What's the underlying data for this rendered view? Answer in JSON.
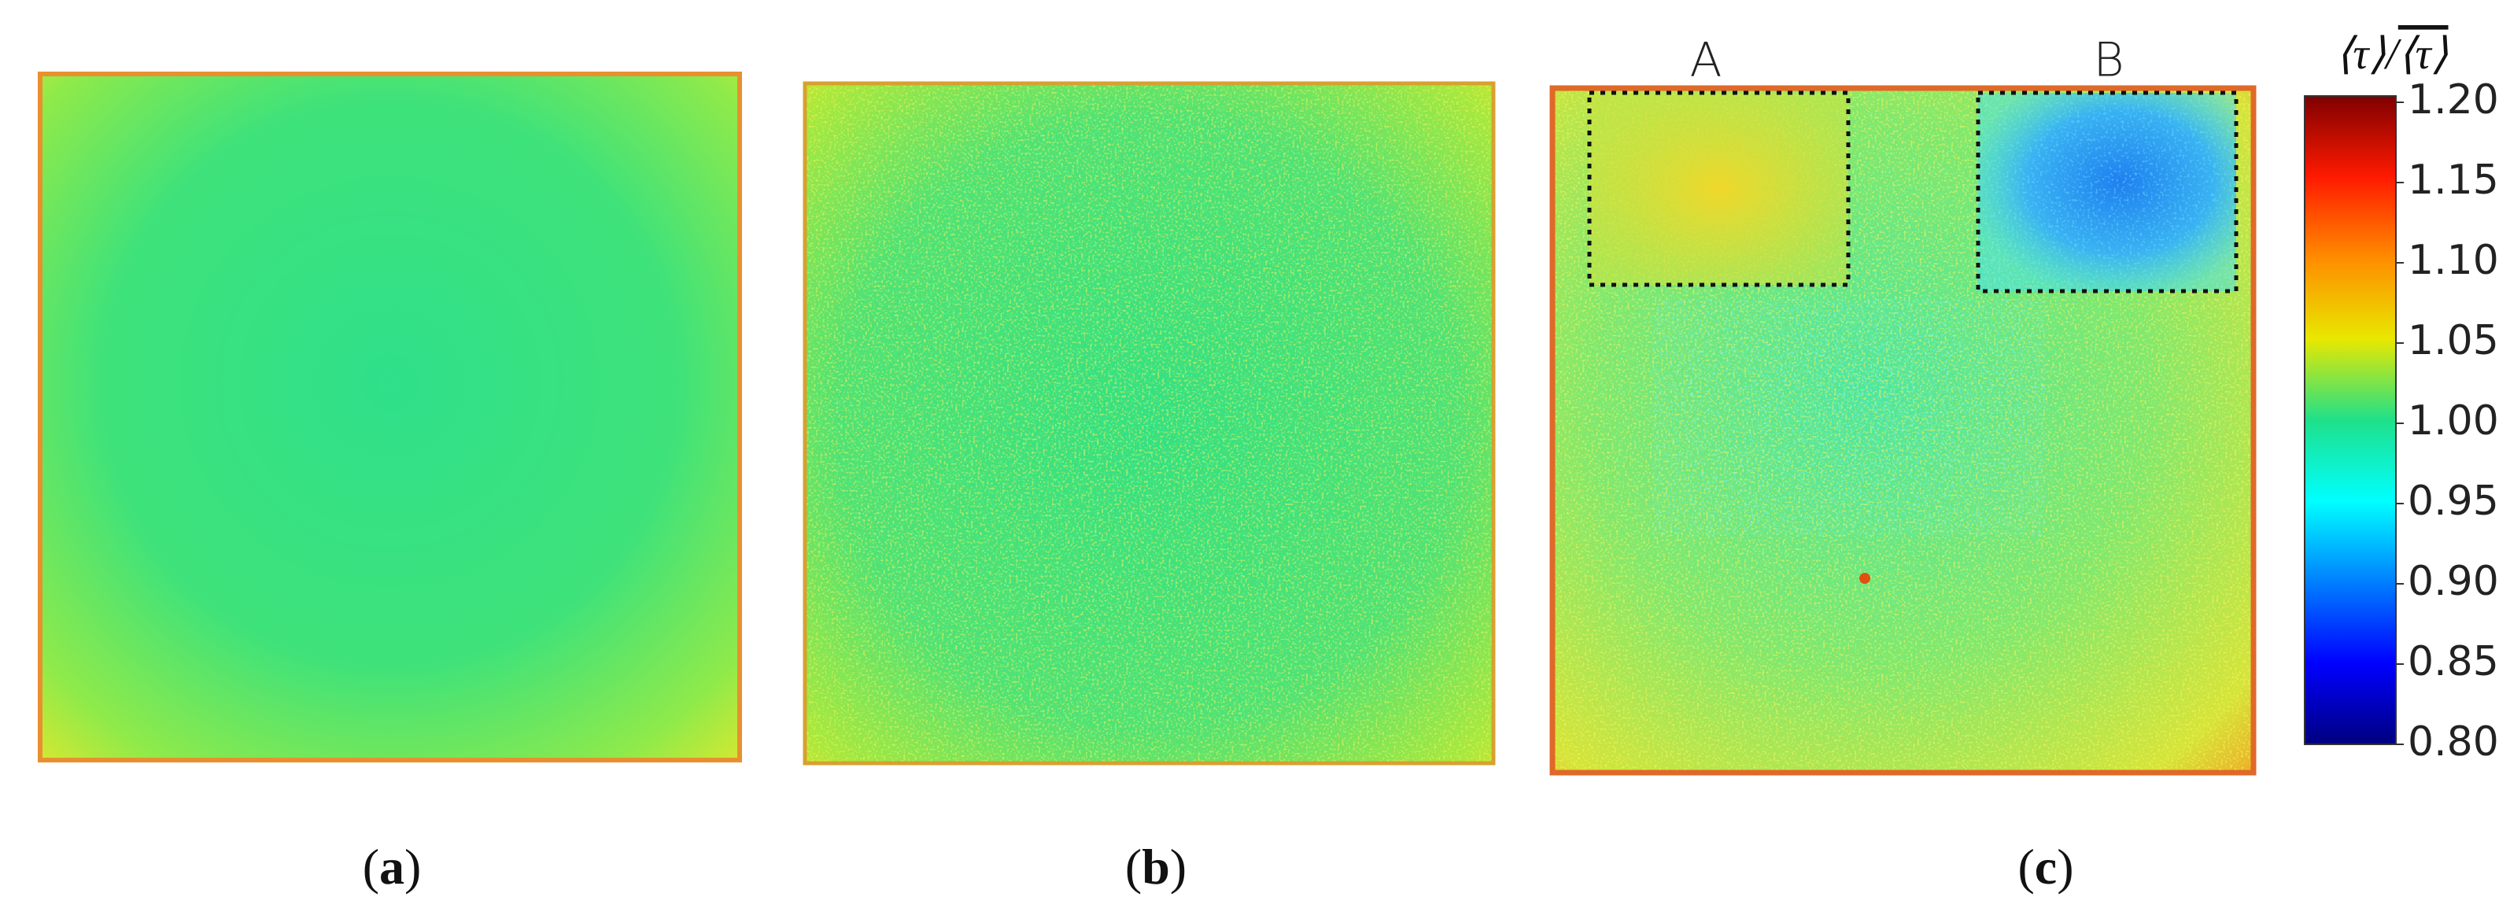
{
  "chart_data": {
    "type": "heatmap-figure",
    "panels": [
      {
        "label": [
          "(",
          "a",
          ")"
        ]
      },
      {
        "label": [
          "(",
          "b",
          ")"
        ]
      },
      {
        "label": [
          "(",
          "c",
          ")"
        ],
        "regions": [
          {
            "label": "A"
          },
          {
            "label": "B"
          }
        ]
      }
    ],
    "colorbar": {
      "label": [
        "⟨τ⟩",
        "/",
        "⟨τ⟩"
      ],
      "lim": [
        0.8,
        1.2
      ],
      "ticks": [
        {
          "value": 0.8,
          "label": "0.80"
        },
        {
          "value": 0.85,
          "label": "0.85"
        },
        {
          "value": 0.9,
          "label": "0.90"
        },
        {
          "value": 0.95,
          "label": "0.95"
        },
        {
          "value": 1.0,
          "label": "1.00"
        },
        {
          "value": 1.05,
          "label": "1.05"
        },
        {
          "value": 1.1,
          "label": "1.10"
        },
        {
          "value": 1.15,
          "label": "1.15"
        },
        {
          "value": 1.2,
          "label": "1.20"
        }
      ],
      "colors": [
        "#00007f",
        "#0000ff",
        "#007fff",
        "#00ffff",
        "#1fe08a",
        "#e8e800",
        "#ff8c00",
        "#ff1a00",
        "#7f0000"
      ]
    }
  }
}
